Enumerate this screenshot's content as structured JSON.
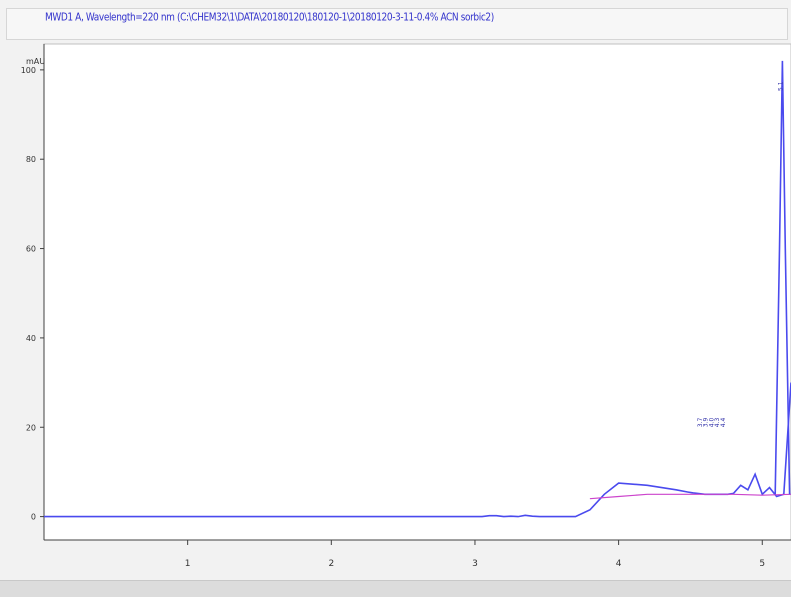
{
  "window": {
    "title": "MWD1 A, Wavelength=220 nm (C:\\CHEM32\\1\\DATA\\20180120\\180120-1\\20180120-3-11-0.4% ACN sorbic2)"
  },
  "chart_data": {
    "type": "line",
    "title": "",
    "xlabel": "",
    "ylabel": "mAU",
    "xlim": [
      0,
      5.2
    ],
    "ylim": [
      -3,
      104
    ],
    "x_ticks": [
      1,
      2,
      3,
      4,
      5
    ],
    "y_ticks": [
      0,
      20,
      40,
      60,
      80,
      100
    ],
    "x_tick_labels": [
      "1",
      "2",
      "3",
      "4",
      "5"
    ],
    "y_tick_labels": [
      "0",
      "20",
      "40",
      "60",
      "80",
      "100"
    ],
    "grid": false,
    "series": [
      {
        "color": "#4a4aee",
        "x": [
          0.0,
          0.5,
          1.0,
          1.5,
          2.0,
          2.5,
          3.0,
          3.05,
          3.1,
          3.15,
          3.2,
          3.25,
          3.3,
          3.35,
          3.4,
          3.45,
          3.5,
          3.6,
          3.7,
          3.8,
          3.9,
          4.0,
          4.2,
          4.4,
          4.48,
          4.52,
          4.55,
          4.6,
          4.62,
          4.65,
          4.68,
          4.7,
          4.73,
          4.76,
          4.8,
          4.85,
          4.9,
          4.95,
          5.0,
          5.05,
          5.1,
          5.15,
          5.2
        ],
        "y": [
          0.0,
          0.0,
          0.0,
          0.0,
          0.0,
          0.0,
          0.0,
          0.0,
          0.2,
          0.2,
          0.0,
          0.1,
          0.0,
          0.3,
          0.1,
          0.0,
          0.0,
          0.0,
          0.0,
          1.5,
          5.0,
          7.5,
          7.0,
          6.0,
          5.5,
          5.3,
          5.2,
          5.0,
          5.0,
          5.0,
          5.0,
          5.0,
          5.0,
          5.0,
          5.2,
          7.0,
          6.0,
          9.5,
          5.0,
          6.5,
          4.5,
          5.0,
          30.0
        ]
      },
      {
        "color": "#cc44cc",
        "x": [
          3.8,
          4.0,
          4.2,
          4.4,
          4.6,
          4.8,
          5.0,
          5.2
        ],
        "y": [
          4.0,
          4.5,
          5.0,
          5.0,
          5.0,
          5.0,
          4.8,
          5.0
        ]
      }
    ],
    "peak": {
      "x": 5.14,
      "height": 102
    },
    "peak_labels": [
      "3.7",
      "3.9",
      "4.0",
      "4.3",
      "4.4",
      "5.1"
    ]
  }
}
